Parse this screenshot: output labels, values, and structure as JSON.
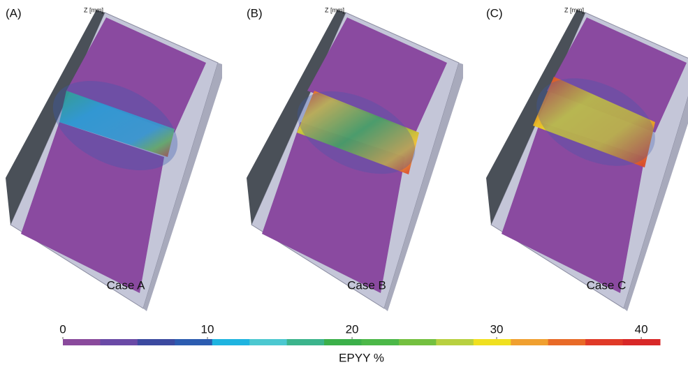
{
  "panels": [
    {
      "label": "(A)",
      "axis": "Z [mm]",
      "caption": "Case A"
    },
    {
      "label": "(B)",
      "axis": "Z [mm]",
      "caption": "Case B"
    },
    {
      "label": "(C)",
      "axis": "Z [mm]",
      "caption": "Case C"
    }
  ],
  "colorbar": {
    "label": "EPYY %",
    "lim": [
      0,
      41.3
    ],
    "ticks": [
      0,
      10,
      20,
      30,
      40
    ],
    "colors": [
      "#8a4a9c",
      "#6a4aa6",
      "#3c4aa0",
      "#2c5cb0",
      "#1fb4e0",
      "#4cc8d0",
      "#3cb48c",
      "#3cb04a",
      "#4cb848",
      "#74c040",
      "#b8d040",
      "#f0e020",
      "#f0a030",
      "#e86a28",
      "#e03a28",
      "#d82828"
    ]
  }
}
